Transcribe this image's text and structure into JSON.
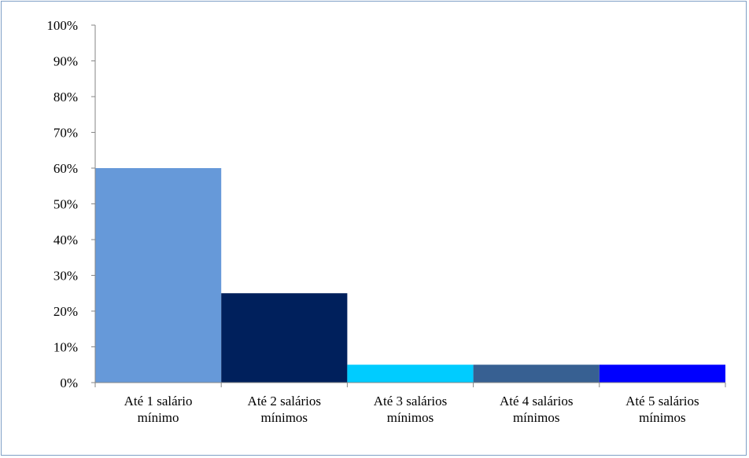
{
  "chart_data": {
    "type": "bar",
    "categories": [
      [
        "Até 1 salário",
        "mínimo"
      ],
      [
        "Até 2 salários",
        "mínimos"
      ],
      [
        "Até 3 salários",
        "mínimos"
      ],
      [
        "Até 4 salários",
        "mínimos"
      ],
      [
        "Até 5 salários",
        "mínimos"
      ]
    ],
    "values": [
      60,
      25,
      5,
      5,
      5
    ],
    "colors": [
      "#6699d9",
      "#00205c",
      "#00ccff",
      "#376092",
      "#0000ff"
    ],
    "ylim": [
      0,
      100
    ],
    "yticks": [
      "0%",
      "10%",
      "20%",
      "30%",
      "40%",
      "50%",
      "60%",
      "70%",
      "80%",
      "90%",
      "100%"
    ],
    "title": "",
    "xlabel": "",
    "ylabel": "",
    "grid": false,
    "legend": "none"
  }
}
